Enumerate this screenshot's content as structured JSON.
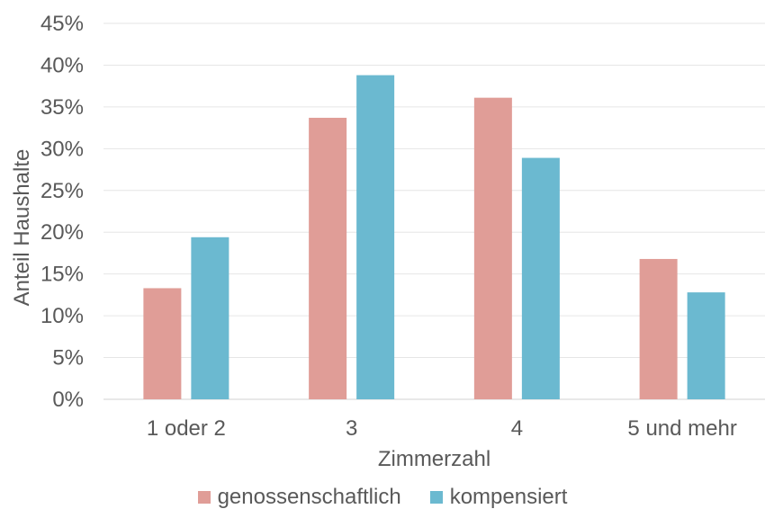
{
  "chart_data": {
    "type": "bar",
    "title": "",
    "xlabel": "Zimmerzahl",
    "ylabel": "Anteil Haushalte",
    "categories": [
      "1 oder 2",
      "3",
      "4",
      "5 und mehr"
    ],
    "ylim": [
      0,
      45
    ],
    "yticks": [
      0,
      5,
      10,
      15,
      20,
      25,
      30,
      35,
      40,
      45
    ],
    "ytick_suffix": "%",
    "grid": true,
    "legend_position": "bottom",
    "series": [
      {
        "name": "genossenschaftlich",
        "color": "#e09d97",
        "values": [
          13.3,
          33.7,
          36.1,
          16.8
        ]
      },
      {
        "name": "kompensiert",
        "color": "#6bb9d0",
        "values": [
          19.4,
          38.8,
          28.9,
          12.8
        ]
      }
    ]
  }
}
